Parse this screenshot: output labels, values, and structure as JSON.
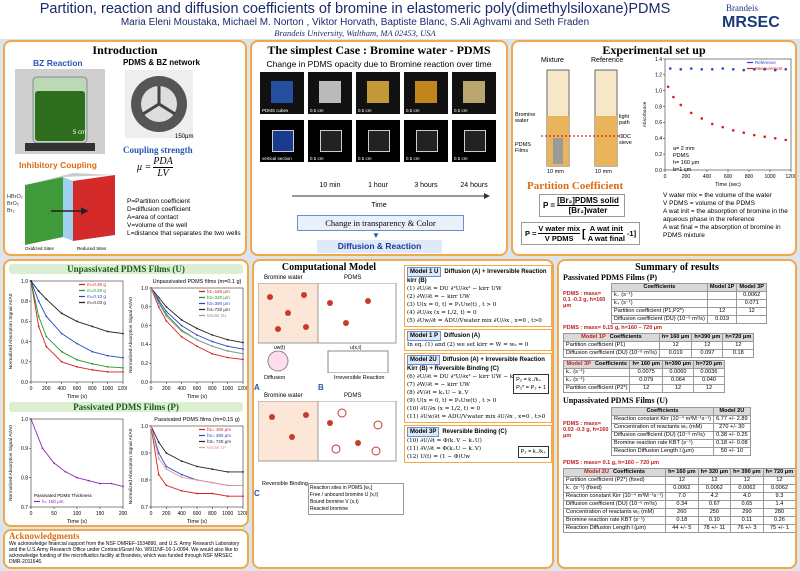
{
  "header": {
    "title": "Partition, reaction and diffusion coefficients of bromine in elastomeric poly(dimethylsiloxane)PDMS",
    "authors": "Maria Eleni Moustaka, Michael M. Norton , Viktor Horvath, Baptiste Blanc, S.Ali Aghvami and Seth Fraden",
    "affiliation": "Brandeis University, Waltham, MA 02453, USA",
    "logo_top": "Brandeis",
    "logo": "MRSEC"
  },
  "intro": {
    "title": "Introduction",
    "bz_label": "BZ Reaction",
    "network_label": "PDMS & BZ network",
    "scale_beaker": "5 cm",
    "scale_network": "150μm",
    "coupling_title": "Coupling strength",
    "equation": {
      "lhs": "μ =",
      "num": "PDA",
      "den": "LV"
    },
    "inhibitory_title": "Inhibitory Coupling",
    "species": [
      "HBrO₂",
      "BrO₂",
      "Br₂"
    ],
    "oxidized": "Oxidized Sites",
    "reduced": "Reduced Sites",
    "definitions": [
      "P=Partition coefficient",
      "D=diffusion coefficient",
      "A=area of contact",
      "V=volume of the well",
      "L=distance that separates the two wells"
    ]
  },
  "simplest": {
    "title": "The simplest Case : Bromine water - PDMS",
    "subtitle": "Change in PDMS opacity due to Bromine reaction over time",
    "cube_label": "PDMS cubes",
    "section_label": "vertical section",
    "scale": "0.5 cm",
    "times": [
      "10 min",
      "1 hour",
      "3 hours",
      "24 hours"
    ],
    "time_axis": "Time",
    "change": "Change in transparency & Color",
    "result": "Diffusion & Reaction"
  },
  "setup": {
    "title": "Experimental set up",
    "mixture": "Mixture",
    "reference": "Reference",
    "labels": [
      "Bromine water",
      "PDMS Films",
      "light path",
      "CDC sieve"
    ],
    "dim": "10 mm",
    "partition_title": "Partition Coefficient",
    "eq1": {
      "lhs": "P =",
      "num": "[Br₂]PDMS solid",
      "den": "[Br₂]water"
    },
    "eq2": {
      "lhs": "P =",
      "num": "V water mix",
      "den": "V PDMS",
      "num2": "A wat init",
      "den2": "A wat final",
      "tail": "-1]"
    },
    "inset": [
      "a= 2 mm",
      "PDMS",
      "h= 160 μm",
      "b=1 cm"
    ],
    "definitions": [
      "V water mix = the volume of the water",
      "V PDMS = volume of the PDMS",
      "A wat init = the absorption of bromine in the aqueous phase in the reference",
      "A wat final = the absorption of bromine in PDMS mixture"
    ],
    "chart": {
      "type": "scatter",
      "xlabel": "Time (sec)",
      "ylabel": "Absorbance",
      "xlim": [
        0,
        1200
      ],
      "xticks": [
        0,
        200,
        400,
        600,
        800,
        1000,
        1200
      ],
      "ylim": [
        0,
        1.4
      ],
      "yticks": [
        {
          "value": 0,
          "label": "0.0"
        },
        0.2,
        0.4,
        0.6,
        0.8,
        {
          "value": 1,
          "label": "1.0"
        },
        1.2,
        1.4
      ],
      "series": [
        {
          "name": "Reference",
          "color": "#2a46c8",
          "x": [
            50,
            150,
            250,
            350,
            450,
            550,
            650,
            750,
            850,
            950,
            1050,
            1150
          ],
          "values": [
            1.28,
            1.27,
            1.28,
            1.27,
            1.27,
            1.28,
            1.27,
            1.26,
            1.27,
            1.27,
            1.26,
            1.27
          ]
        },
        {
          "name": "Measurement",
          "color": "#d42020",
          "x": [
            30,
            80,
            150,
            250,
            350,
            450,
            550,
            650,
            750,
            850,
            950,
            1050,
            1150
          ],
          "values": [
            1.05,
            0.92,
            0.82,
            0.72,
            0.65,
            0.58,
            0.54,
            0.5,
            0.47,
            0.44,
            0.42,
            0.4,
            0.38
          ]
        }
      ]
    }
  },
  "unpassivated": {
    "title": "Unpassivated PDMS Films (U)",
    "chart_mass": {
      "type": "line",
      "xlabel": "Time (s)",
      "ylabel": "Normalized Absorption Signal At/A0",
      "xlim": [
        0,
        1200
      ],
      "xticks": [
        0,
        200,
        400,
        600,
        800,
        1000,
        1200
      ],
      "ylim": [
        0,
        1
      ],
      "yticks": [
        {
          "value": 0,
          "label": "0.0"
        },
        0.2,
        0.4,
        0.6,
        0.8,
        {
          "value": 1,
          "label": "1.0"
        }
      ],
      "series": [
        {
          "name": "m=0.30 g",
          "color": "#d42020",
          "x": [
            0,
            100,
            200,
            400,
            600,
            800,
            1000,
            1200
          ],
          "values": [
            1,
            0.55,
            0.35,
            0.2,
            0.15,
            0.12,
            0.1,
            0.1
          ]
        },
        {
          "name": "m=0.20 g",
          "color": "#1c9a2c",
          "x": [
            0,
            100,
            200,
            400,
            600,
            800,
            1000,
            1200
          ],
          "values": [
            1,
            0.65,
            0.45,
            0.3,
            0.22,
            0.18,
            0.15,
            0.14
          ]
        },
        {
          "name": "m=0.10 g",
          "color": "#2a46c8",
          "x": [
            0,
            100,
            200,
            400,
            600,
            800,
            1000,
            1200
          ],
          "values": [
            1,
            0.8,
            0.65,
            0.48,
            0.38,
            0.3,
            0.26,
            0.24
          ]
        },
        {
          "name": "m=0.03 g",
          "color": "#222222",
          "x": [
            0,
            100,
            200,
            400,
            600,
            800,
            1000,
            1200
          ],
          "values": [
            1,
            0.9,
            0.82,
            0.68,
            0.6,
            0.55,
            0.5,
            0.48
          ]
        }
      ]
    },
    "chart_thickness": {
      "type": "line",
      "title": "Unpassivated PDMS films (m=0.1 g)",
      "xlabel": "Time (s)",
      "ylabel": "Normalized Absorption Signal At/A0",
      "xlim": [
        0,
        1200
      ],
      "xticks": [
        0,
        200,
        400,
        600,
        800,
        1000,
        1200
      ],
      "ylim": [
        0,
        1
      ],
      "yticks": [
        {
          "value": 0,
          "label": "0.0"
        },
        0.2,
        0.4,
        0.6,
        0.8,
        {
          "value": 1,
          "label": "1.0"
        }
      ],
      "series": [
        {
          "name": "h1=160 μm",
          "color": "#d42020",
          "x": [
            0,
            100,
            200,
            400,
            600,
            800,
            1000,
            1200
          ],
          "values": [
            1,
            0.8,
            0.65,
            0.48,
            0.38,
            0.3,
            0.26,
            0.24
          ]
        },
        {
          "name": "h2=320 μm",
          "color": "#1c9a2c",
          "x": [
            0,
            100,
            200,
            400,
            600,
            800,
            1000,
            1200
          ],
          "values": [
            1,
            0.85,
            0.72,
            0.55,
            0.45,
            0.38,
            0.33,
            0.3
          ]
        },
        {
          "name": "h3=390 μm",
          "color": "#2a46c8",
          "x": [
            0,
            100,
            200,
            400,
            600,
            800,
            1000,
            1200
          ],
          "values": [
            1,
            0.87,
            0.75,
            0.6,
            0.5,
            0.43,
            0.38,
            0.35
          ]
        },
        {
          "name": "h4=720 μm",
          "color": "#222222",
          "x": [
            0,
            100,
            200,
            400,
            600,
            800,
            1000,
            1200
          ],
          "values": [
            1,
            0.9,
            0.8,
            0.66,
            0.57,
            0.5,
            0.45,
            0.42
          ]
        },
        {
          "name": "Model 2U",
          "color": "#999999",
          "x": [
            0,
            100,
            200,
            400,
            600,
            800,
            1000,
            1200
          ],
          "values": [
            1,
            0.84,
            0.7,
            0.54,
            0.45,
            0.38,
            0.33,
            0.3
          ]
        }
      ]
    }
  },
  "passivated": {
    "title": "Passivated PDMS Films (P)",
    "chart_short": {
      "type": "line",
      "legend_title": "Passivated PDMS Thickness",
      "xlabel": "Time (s)",
      "ylabel": "Normalized Absorption Signal At/A0",
      "xlim": [
        0,
        200
      ],
      "xticks": [
        0,
        50,
        100,
        150,
        200
      ],
      "ylim": [
        0.7,
        1
      ],
      "yticks": [
        0.7,
        0.8,
        0.9,
        {
          "value": 1,
          "label": "1.0"
        }
      ],
      "series": [
        {
          "name": "h= 160 μm",
          "color": "#8a2ab0",
          "x": [
            0,
            25,
            50,
            75,
            100,
            125,
            150,
            175,
            200
          ],
          "values": [
            1,
            0.9,
            0.85,
            0.82,
            0.8,
            0.79,
            0.78,
            0.78,
            0.77
          ]
        }
      ]
    },
    "chart_thickness": {
      "type": "line",
      "title": "Passivated PDMS films (m=0.15 g)",
      "xlabel": "Time (s)",
      "ylabel": "Normalized Absorption Signal At/A0",
      "xlim": [
        0,
        1200
      ],
      "xticks": [
        0,
        200,
        400,
        600,
        800,
        1000,
        1200
      ],
      "ylim": [
        0.7,
        1
      ],
      "yticks": [
        0.7,
        0.8,
        0.9,
        {
          "value": 1,
          "label": "1.0"
        }
      ],
      "series": [
        {
          "name": "h1= 160 μm",
          "color": "#d42020",
          "x": [
            0,
            100,
            200,
            400,
            600,
            800,
            1000,
            1200
          ],
          "values": [
            1,
            0.82,
            0.78,
            0.76,
            0.75,
            0.75,
            0.74,
            0.74
          ]
        },
        {
          "name": "h2= 390 μm",
          "color": "#2a46c8",
          "x": [
            0,
            100,
            200,
            400,
            600,
            800,
            1000,
            1200
          ],
          "values": [
            1,
            0.9,
            0.85,
            0.82,
            0.8,
            0.79,
            0.78,
            0.78
          ]
        },
        {
          "name": "h3= 720 μm",
          "color": "#222222",
          "x": [
            0,
            100,
            200,
            400,
            600,
            800,
            1000,
            1200
          ],
          "values": [
            1,
            0.94,
            0.9,
            0.87,
            0.85,
            0.84,
            0.83,
            0.83
          ]
        },
        {
          "name": "Model 1P",
          "color": "#e79a9a",
          "x": [
            0,
            100,
            200,
            400,
            600,
            800,
            1000,
            1200
          ],
          "values": [
            1,
            0.88,
            0.84,
            0.81,
            0.8,
            0.79,
            0.78,
            0.78
          ]
        }
      ]
    }
  },
  "acknowledgments": {
    "title": "Acknowledgments",
    "text": "We acknowledge financial support from the NSF DMREF-1534890, and U.S. Army Research Laboratory and the U.S.Army Research Office under Contract/Grant No. W911NF-16-1-0094. We would also like to acknowledge funding of the microfluidics facility at Brandeis, which was funded through NSF MRSEC DMR-2011646."
  },
  "computational": {
    "title": "Computational Model",
    "bromine_water": "Bromine water",
    "pdms": "PDMS",
    "uw": "uw(t)",
    "ux": "u(x,t)",
    "diffusion": "Diffusion",
    "irreversible": "Irreversible Reaction",
    "letters": [
      "A",
      "B",
      "C"
    ],
    "reversible": "Reversible Binding",
    "legend": [
      "Reaction sites in PDMS [w₀]",
      "Free / unbound bromine U (x,t)",
      "Bound bromine V (x,t)",
      "Reacted bromine"
    ],
    "models": [
      {
        "name": "Model 1 U",
        "title": "Diffusion (A) + Irreversible Reaction kirr (B)",
        "equations": [
          "(1) ∂U/∂t = DU ∂²U/∂x² − kirr UW",
          "(2) ∂W/∂t = − kirr UW",
          "(3) U(x = 0, t) = P₁Uw(t)   , t > 0",
          "(4) ∂U/∂x (x = L/2, t) = 0",
          "(5) ∂Uw/∂t = ADU/Vwater mix ∂U/∂x   , x=0 , t>0"
        ]
      },
      {
        "name": "Model 1 P",
        "title": "Diffusion (A)",
        "equations": [
          "In eq. (1) and (2) we set kirr = W = w₀ = 0"
        ]
      },
      {
        "name": "Model 2U",
        "title": "Diffusion (A) + Irreversible Reaction Kirr (B) + Reversible Binding (C)",
        "equations": [
          "(6) ∂U/∂t = DU ∂²U/∂x² − kirr UW − k₊U + k₋V",
          "(7) ∂W/∂t = − kirr UW",
          "(8) ∂V/∂t = k₊U − k₋V",
          "(9) U(x = 0, t) = P₂Uw(t)   , t > 0",
          "(10) ∂U/∂x (x = L/2, t) = 0",
          "(11) ∂Uw/∂t = ADU/Vwater mix ∂U/∂x   , x=0 , t>0"
        ],
        "side": [
          "P₂ = k₋/k₊",
          "P₂* = P₂ + 1"
        ]
      },
      {
        "name": "Model 3P",
        "title": "Reversible Binding (C)",
        "equations": [
          "(10) ∂U/∂t = Φ(k₋V − k₊U)",
          "(11) ∂V/∂t = Φ(k₊U − k₋V)",
          "(12) U(t) = (1 − Φ)Uw"
        ],
        "side": [
          "P₂ = k₋/k₊"
        ]
      }
    ]
  },
  "summary": {
    "title": "Summary of results",
    "passivated_title": "Passivated PDMS Films (P)",
    "p_mass1": "PDMS : mass= 0.1 -0.3 g, h=160 μm",
    "p_table1": {
      "header": [
        "Coefficients",
        "Model 1P",
        "Model 3P"
      ],
      "rows": [
        [
          "k₋ (s⁻¹)",
          null,
          "0.0062"
        ],
        [
          "k₊ (s⁻¹)",
          null,
          "0.071"
        ],
        [
          "Partition coefficient (P1,P2*)",
          "12",
          "12"
        ],
        [
          "Diffusion coefficient (DU) (10⁻⁶ m²/s)",
          "0.019",
          null
        ]
      ]
    },
    "p_mass2": "PDMS : mass= 0.15 g, h=160 – 720 μm",
    "p_table2": {
      "model": "Model 1P",
      "header": [
        "Coefficients",
        "h= 160 μm",
        "h=390 μm",
        "h=720 μm"
      ],
      "rows": [
        [
          "Partition coefficient (P1)",
          "12",
          "12",
          "12"
        ],
        [
          "Diffusion coefficient (DU) (10⁻⁶ m²/s)",
          "0.019",
          "0.097",
          "0.18"
        ]
      ]
    },
    "p_table3": {
      "model": "Model 3P",
      "header": [
        "Coefficients",
        "h= 160 μm",
        "h=390 μm",
        "h=720 μm"
      ],
      "rows": [
        [
          "k₋ (s⁻¹)",
          "0.0075",
          "0.0060",
          "0.0036"
        ],
        [
          "k₊ (s⁻¹)",
          "0.079",
          "0.064",
          "0.040"
        ],
        [
          "Partition coefficient (P2*)",
          "12",
          "12",
          "12"
        ]
      ]
    },
    "unpassivated_title": "Unpassivated PDMS Films (U)",
    "u_mass1": "PDMS : mass= 0.03 -0.3 g, h=160 μm",
    "u_table1": {
      "header": [
        "Coefficients",
        "Model 2U"
      ],
      "rows": [
        [
          "Reaction constant Kirr (10⁻⁴ m³M⁻¹s⁻¹)",
          "6.77 +/- 2.89"
        ],
        [
          "Concentration of reactants w₀ (mM)",
          "270 +/- 30"
        ],
        [
          "Diffusion coefficient (DU) (10⁻⁶ m²/s)",
          "0.38 +/- 0.25"
        ],
        [
          "Bromine reaction rate KBT (s⁻¹)",
          "0.18 +/- 0.08"
        ],
        [
          "Reaction Diffusion Length l (μm)",
          "50 +/- 10"
        ]
      ]
    },
    "u_mass2": "PDMS : mass= 0.1 g, h=160 – 720 μm",
    "u_table2": {
      "model": "Model 2U",
      "header": [
        "Coefficients",
        "h= 160 μm",
        "h= 320 μm",
        "h= 390 μm",
        "h= 720 μm"
      ],
      "rows": [
        [
          "Partition coefficient (P2*) (fixed)",
          "12",
          "12",
          "12",
          "12"
        ],
        [
          "k₋ (s⁻¹) (fixed)",
          "0.0062",
          "0.0062",
          "0.0062",
          "0.0062"
        ],
        [
          "Reaction constant Kirr (10⁻⁴ m³M⁻¹s⁻¹)",
          "7.0",
          "4.2",
          "4.0",
          "9.3"
        ],
        [
          "Diffusion coefficient (DU) (10⁻⁶ m²/s)",
          "0.34",
          "0.67",
          "0.65",
          "1.4"
        ],
        [
          "Concentration of reactants w₀ (mM)",
          "260",
          "250",
          "290",
          "280"
        ],
        [
          "Bromine reaction rate KBT (s⁻¹)",
          "0.18",
          "0.10",
          "0.11",
          "0.26"
        ],
        [
          "Reaction Diffusion Length l (μm)",
          "44 +/- 5",
          "78 +/- 11",
          "76 +/- 3",
          "75 +/- 1"
        ]
      ]
    }
  }
}
